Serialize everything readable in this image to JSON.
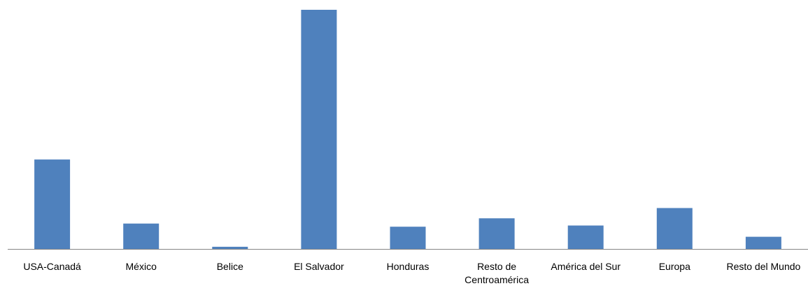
{
  "chart_data": {
    "type": "bar",
    "title": "",
    "xlabel": "",
    "ylabel": "",
    "categories": [
      "USA-Canadá",
      "México",
      "Belice",
      "El Salvador",
      "Honduras",
      "Resto de Centroamérica",
      "América del Sur",
      "Europa",
      "Resto del Mundo"
    ],
    "category_lines": [
      [
        "USA-Canadá"
      ],
      [
        "México"
      ],
      [
        "Belice"
      ],
      [
        "El Salvador"
      ],
      [
        "Honduras"
      ],
      [
        "Resto de",
        "Centroamérica"
      ],
      [
        "América del Sur"
      ],
      [
        "Europa"
      ],
      [
        "Resto del Mundo"
      ]
    ],
    "values": [
      37.4,
      10.6,
      0.9,
      100,
      9.3,
      12.8,
      9.8,
      17.1,
      5.1
    ],
    "ylim": [
      0,
      100
    ],
    "grid": false,
    "legend": "none",
    "bar_color": "#4F81BD",
    "axis_color": "#868686"
  }
}
